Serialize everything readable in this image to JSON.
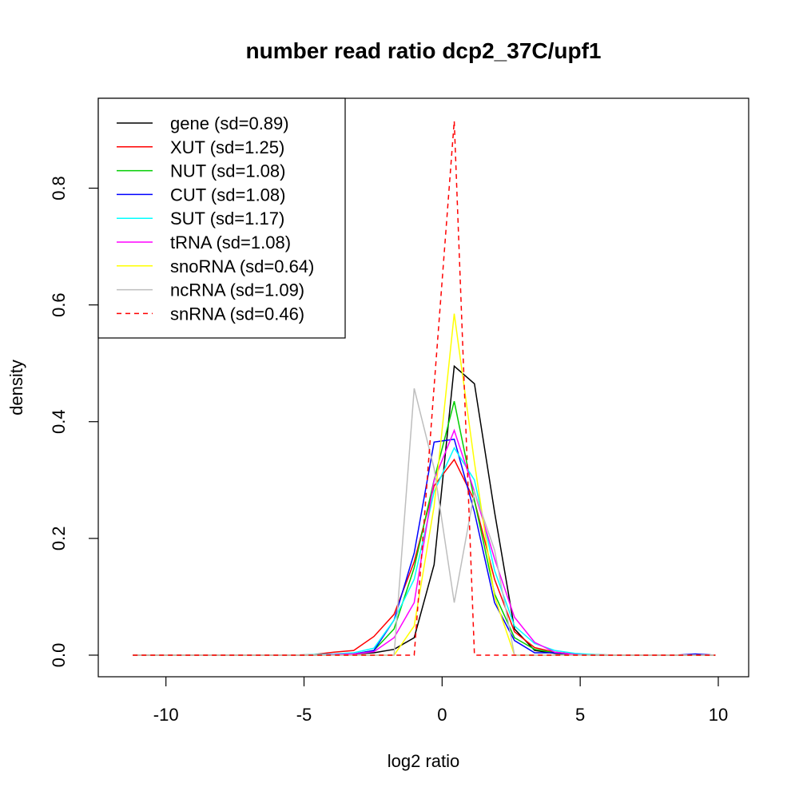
{
  "chart_data": {
    "type": "line",
    "title": "number read ratio dcp2_37C/upf1",
    "xlabel": "log2 ratio",
    "ylabel": "density",
    "xlim": [
      -12.45,
      11.1
    ],
    "ylim": [
      -0.037,
      0.954
    ],
    "xticks": [
      -10,
      -5,
      0,
      5,
      10
    ],
    "xtick_labels": [
      "-10",
      "-5",
      "0",
      "5",
      "10"
    ],
    "yticks": [
      0.0,
      0.2,
      0.4,
      0.6,
      0.8
    ],
    "ytick_labels": [
      "0.0",
      "0.2",
      "0.4",
      "0.6",
      "0.8"
    ],
    "grid": false,
    "legend_position": "top-left",
    "x": [
      -11.2,
      -10.47,
      -9.74,
      -9.02,
      -8.29,
      -7.56,
      -6.83,
      -6.11,
      -5.38,
      -4.65,
      -3.92,
      -3.2,
      -2.47,
      -1.74,
      -1.01,
      -0.29,
      0.44,
      1.17,
      1.9,
      2.62,
      3.35,
      4.08,
      4.81,
      5.53,
      6.26,
      6.99,
      7.72,
      8.45,
      9.17,
      9.9
    ],
    "series": [
      {
        "name": "gene",
        "legend": "gene (sd=0.89)",
        "color": "#000000",
        "dash": false,
        "values": [
          0,
          0,
          0,
          0,
          0,
          0,
          0,
          0,
          0,
          0,
          0.001,
          0.002,
          0.004,
          0.01,
          0.03,
          0.155,
          0.495,
          0.465,
          0.245,
          0.045,
          0.008,
          0.003,
          0.001,
          0,
          0,
          0,
          0,
          0,
          0,
          0
        ]
      },
      {
        "name": "XUT",
        "legend": "XUT (sd=1.25)",
        "color": "#ff0000",
        "dash": false,
        "values": [
          0,
          0,
          0,
          0,
          0,
          0,
          0,
          0,
          0,
          0.001,
          0.005,
          0.008,
          0.032,
          0.07,
          0.16,
          0.29,
          0.335,
          0.265,
          0.13,
          0.04,
          0.013,
          0.005,
          0.002,
          0.001,
          0,
          0,
          0,
          0,
          0.001,
          0
        ]
      },
      {
        "name": "NUT",
        "legend": "NUT (sd=1.08)",
        "color": "#00cd00",
        "dash": false,
        "values": [
          0,
          0,
          0,
          0,
          0,
          0,
          0,
          0,
          0,
          0,
          0.001,
          0.002,
          0.008,
          0.045,
          0.15,
          0.3,
          0.435,
          0.265,
          0.105,
          0.03,
          0.01,
          0.004,
          0.001,
          0,
          0,
          0,
          0,
          0,
          0,
          0
        ]
      },
      {
        "name": "CUT",
        "legend": "CUT (sd=1.08)",
        "color": "#0000ff",
        "dash": false,
        "values": [
          0,
          0,
          0,
          0,
          0,
          0,
          0,
          0,
          0,
          0,
          0.001,
          0.002,
          0.008,
          0.06,
          0.175,
          0.365,
          0.37,
          0.245,
          0.09,
          0.025,
          0.004,
          0.004,
          0.001,
          0,
          0,
          0,
          0,
          0,
          0.002,
          0
        ]
      },
      {
        "name": "SUT",
        "legend": "SUT (sd=1.17)",
        "color": "#00ffff",
        "dash": false,
        "values": [
          0,
          0,
          0,
          0,
          0,
          0,
          0,
          0,
          0,
          0.001,
          0.002,
          0.004,
          0.012,
          0.06,
          0.13,
          0.28,
          0.355,
          0.3,
          0.145,
          0.05,
          0.02,
          0.008,
          0.003,
          0.001,
          0,
          0,
          0,
          0,
          0,
          0
        ]
      },
      {
        "name": "tRNA",
        "legend": "tRNA (sd=1.08)",
        "color": "#ff00ff",
        "dash": false,
        "values": [
          0,
          0,
          0,
          0,
          0,
          0,
          0,
          0,
          0,
          0,
          0.001,
          0.002,
          0.006,
          0.03,
          0.09,
          0.3,
          0.385,
          0.28,
          0.165,
          0.065,
          0.022,
          0.005,
          0.001,
          0,
          0,
          0,
          0,
          0,
          0,
          0
        ]
      },
      {
        "name": "snoRNA",
        "legend": "snoRNA (sd=0.64)",
        "color": "#ffff00",
        "dash": false,
        "values": [
          0,
          0,
          0,
          0,
          0,
          0,
          0,
          0,
          0,
          0,
          0,
          0,
          0,
          0,
          0.05,
          0.255,
          0.585,
          0.33,
          0.1,
          0,
          0,
          0,
          0,
          0,
          0,
          0,
          0,
          0,
          0,
          0
        ]
      },
      {
        "name": "ncRNA",
        "legend": "ncRNA (sd=1.09)",
        "color": "#bebebe",
        "dash": false,
        "values": [
          0,
          0,
          0,
          0,
          0,
          0,
          0,
          0,
          0,
          0,
          0,
          0,
          0,
          0,
          0.457,
          0.32,
          0.09,
          0.28,
          0.18,
          0,
          0,
          0,
          0,
          0,
          0,
          0,
          0,
          0,
          0,
          0
        ]
      },
      {
        "name": "snRNA",
        "legend": "snRNA (sd=0.46)",
        "color": "#ff0000",
        "dash": true,
        "values": [
          0,
          0,
          0,
          0,
          0,
          0,
          0,
          0,
          0,
          0,
          0,
          0,
          0,
          0,
          0,
          0.46,
          0.915,
          0,
          0,
          0,
          0,
          0,
          0,
          0,
          0,
          0,
          0,
          0,
          0,
          0
        ]
      }
    ]
  }
}
